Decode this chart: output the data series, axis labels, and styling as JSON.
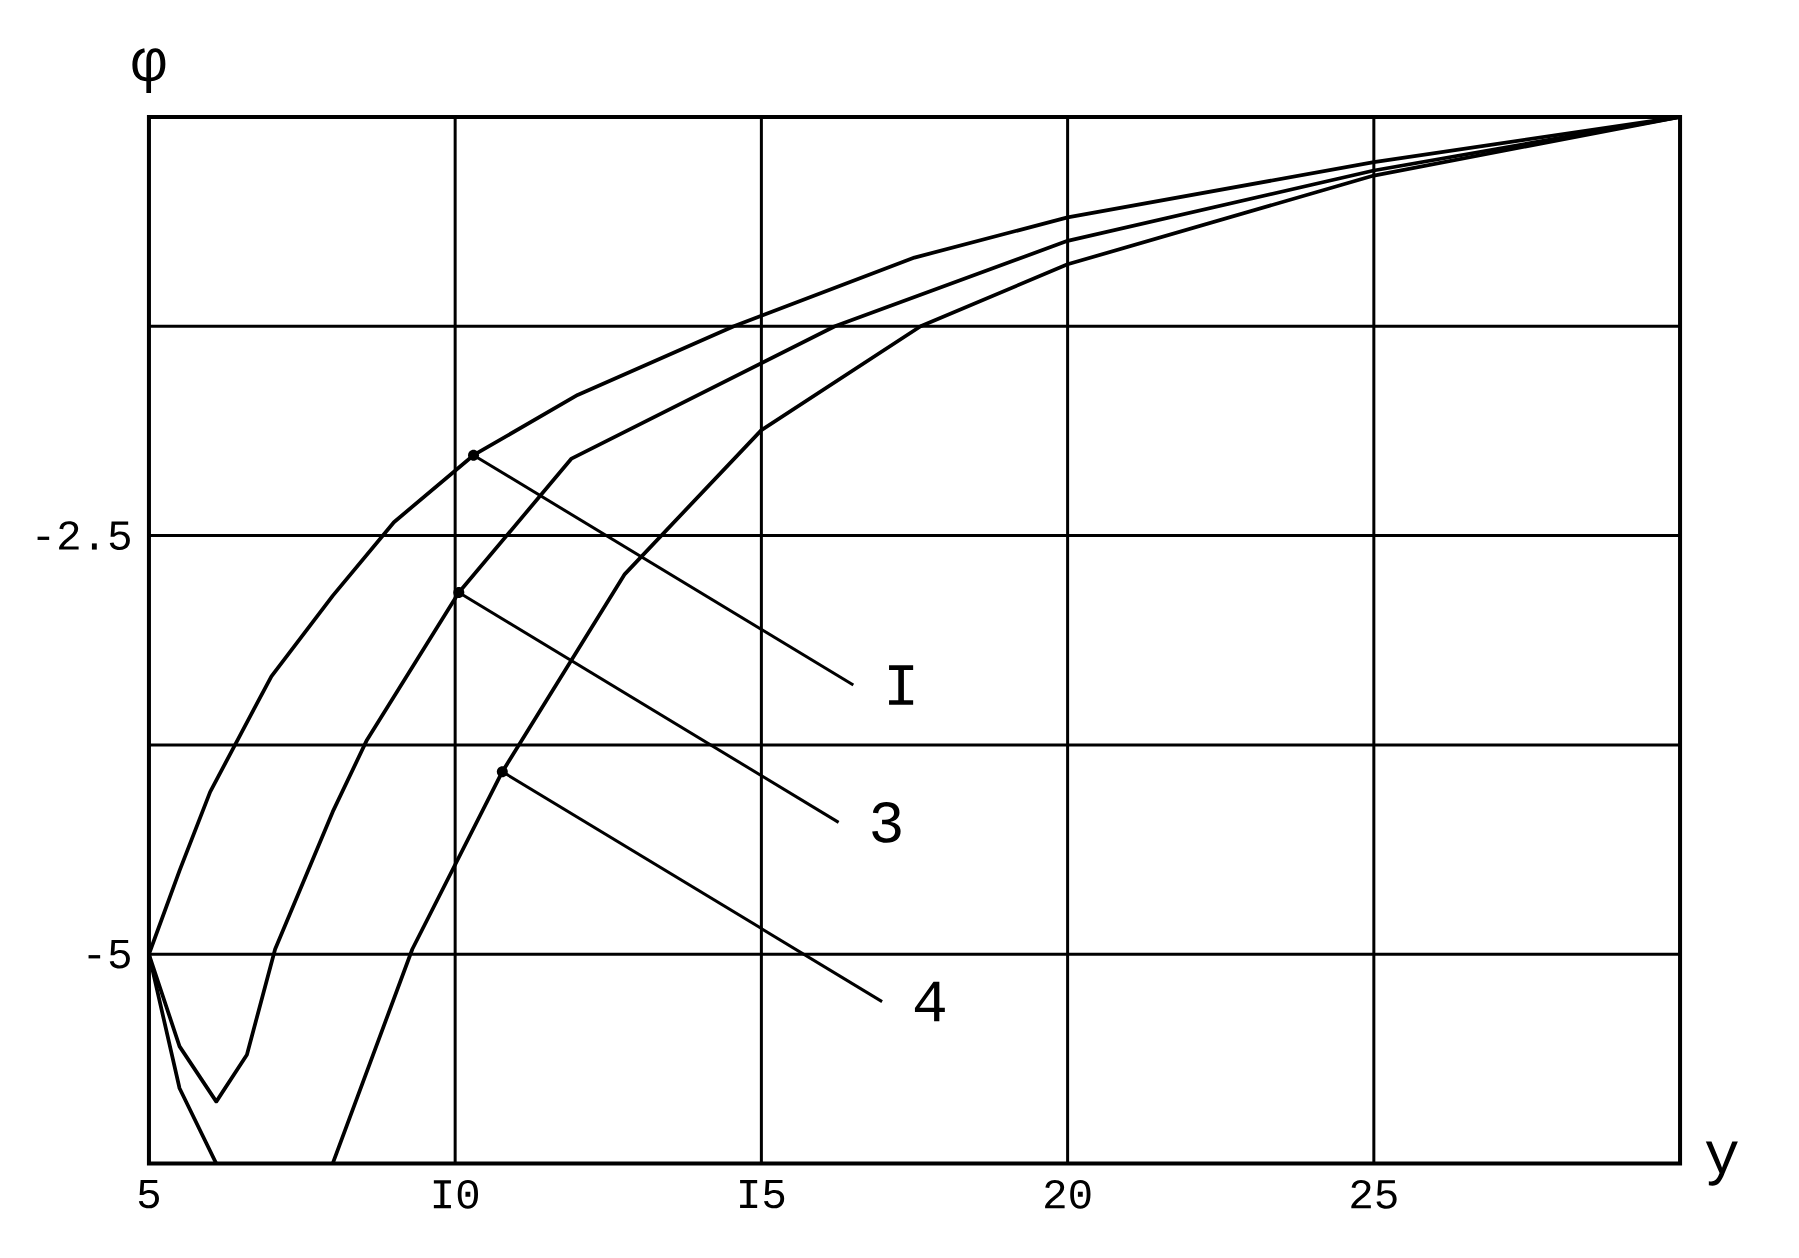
{
  "chart_data": {
    "type": "line",
    "xlabel": "y",
    "ylabel": "φ",
    "xlim": [
      5,
      30
    ],
    "ylim": [
      -6.25,
      0
    ],
    "xticks": [
      5,
      {
        "value": 10,
        "label": "I0"
      },
      {
        "value": 15,
        "label": "I5"
      },
      20,
      25,
      {
        "value": 30,
        "label": null
      }
    ],
    "yticks": [
      {
        "value": 0,
        "label": null
      },
      {
        "value": -1.25,
        "label": null
      },
      {
        "value": -2.5,
        "label": "-2.5"
      },
      {
        "value": -3.75,
        "label": null
      },
      {
        "value": -5,
        "label": "-5"
      },
      {
        "value": -6.25,
        "label": null
      }
    ],
    "grid": true,
    "series": [
      {
        "color": "#000000",
        "x": [
          5,
          5.5,
          6,
          7,
          8,
          9,
          10.3,
          12,
          14.55,
          17.5,
          20,
          25,
          30
        ],
        "values": [
          -5,
          -4.5,
          -4.03,
          -3.34,
          -2.86,
          -2.42,
          -2.02,
          -1.66,
          -1.25,
          -0.84,
          -0.6,
          -0.27,
          0
        ]
      },
      {
        "color": "#000000",
        "x": [
          5,
          5.5,
          6.1,
          6.6,
          7.06,
          8,
          8.56,
          10.06,
          11.9,
          16.2,
          20,
          25,
          30
        ],
        "values": [
          -5,
          -5.55,
          -5.88,
          -5.6,
          -4.97,
          -4.15,
          -3.72,
          -2.84,
          -2.04,
          -1.25,
          -0.74,
          -0.32,
          0
        ]
      },
      {
        "color": "#000000",
        "x": [
          5,
          5.5,
          6.1,
          7,
          8,
          9.3,
          10.77,
          12.77,
          15,
          17.6,
          20,
          25,
          30
        ],
        "values": [
          -5,
          -5.8,
          -6.25,
          null,
          -6.25,
          -4.97,
          -3.91,
          -2.73,
          -1.87,
          -1.25,
          -0.88,
          -0.35,
          0
        ]
      }
    ],
    "annotations": [
      {
        "text": "I",
        "x": 10.3,
        "y": -2.02
      },
      {
        "text": "3",
        "x": 10.06,
        "y": -2.84
      },
      {
        "text": "4",
        "x": 10.77,
        "y": -3.91
      }
    ]
  }
}
